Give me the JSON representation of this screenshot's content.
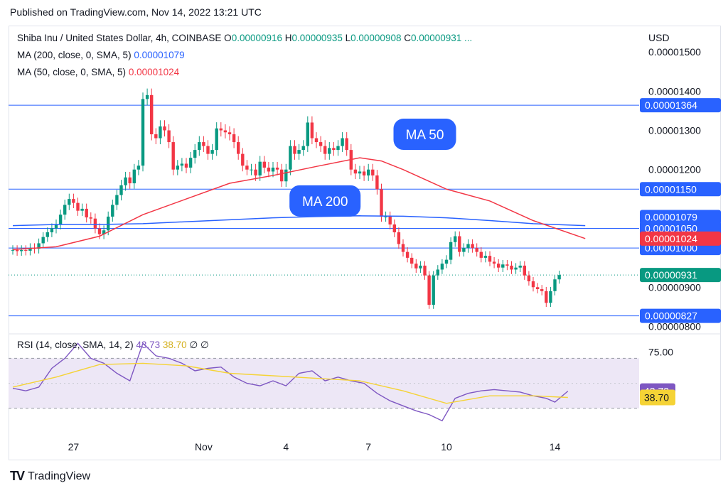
{
  "header": {
    "published": "Published on TradingView.com, Nov 14, 2022 13:21 UTC"
  },
  "legend": {
    "symbol": "Shiba Inu / United States Dollar, 4h, COINBASE",
    "o_label": "O",
    "o_value": "0.00000916",
    "h_label": "H",
    "h_value": "0.00000935",
    "l_label": "L",
    "l_value": "0.00000908",
    "c_label": "C",
    "c_value": "0.00000931 ...",
    "ma200_label": "MA (200, close, 0, SMA, 5)",
    "ma200_value": "0.00001079",
    "ma50_label": "MA (50, close, 0, SMA, 5)",
    "ma50_value": "0.00001024",
    "rsi_label": "RSI (14, close, SMA, 14, 2)",
    "rsi_value": "43.73",
    "rsi_ma_value": "38.70",
    "rsi_extra1": "∅",
    "rsi_extra2": "∅"
  },
  "footer": {
    "logo": "TV",
    "brand": "TradingView"
  },
  "colors": {
    "up": "#089981",
    "down": "#f23645",
    "ma200": "#2962ff",
    "ma50": "#f23645",
    "hline": "#2962ff",
    "rsi": "#7e57c2",
    "rsi_ma": "#f5d336",
    "rsi_band": "#ede7f6",
    "callout": "#2962ff"
  },
  "chart_data": [
    {
      "type": "candlestick",
      "currency_label": "USD",
      "ylim": [
        7.9e-06,
        1.56e-05
      ],
      "y_ticks": [
        {
          "value": 1.5e-05,
          "label": "0.00001500"
        },
        {
          "value": 1.4e-05,
          "label": "0.00001400"
        },
        {
          "value": 1.3e-05,
          "label": "0.00001300"
        },
        {
          "value": 1.2e-05,
          "label": "0.00001200"
        },
        {
          "value": 9e-06,
          "label": "0.00000900"
        },
        {
          "value": 8e-06,
          "label": "0.00000800"
        }
      ],
      "x_ticks": [
        {
          "index": 14,
          "label": "27"
        },
        {
          "index": 44,
          "label": "Nov"
        },
        {
          "index": 63,
          "label": "4"
        },
        {
          "index": 82,
          "label": "7"
        },
        {
          "index": 100,
          "label": "10"
        },
        {
          "index": 125,
          "label": "14"
        }
      ],
      "horizontal_lines": [
        {
          "value": 1.364e-05,
          "label": "0.00001364"
        },
        {
          "value": 1.15e-05,
          "label": "0.00001150"
        },
        {
          "value": 1.05e-05,
          "label": "0.00001050"
        },
        {
          "value": 1e-05,
          "label": "0.00001000"
        },
        {
          "value": 8.27e-06,
          "label": "0.00000827"
        }
      ],
      "price_badges": [
        {
          "value": 1.079e-05,
          "label": "0.00001079",
          "kind": "ma200"
        },
        {
          "value": 1.024e-05,
          "label": "0.00001024",
          "kind": "ma50"
        },
        {
          "value": 9.31e-06,
          "label": "0.00000931",
          "kind": "last"
        }
      ],
      "callouts": [
        {
          "text": "MA 50",
          "index": 95,
          "value": 1.29e-05
        },
        {
          "text": "MA 200",
          "index": 72,
          "value": 1.12e-05
        }
      ],
      "closes": [
        9.95e-06,
        9.92e-06,
        9.95e-06,
        9.93e-06,
        1e-05,
        9.98e-06,
        1.012e-05,
        1.028e-05,
        1.04e-05,
        1.05e-05,
        1.06e-05,
        1.085e-05,
        1.11e-05,
        1.125e-05,
        1.115e-05,
        1.095e-05,
        1.1e-05,
        1.078e-05,
        1.075e-05,
        1.05e-05,
        1.035e-05,
        1.045e-05,
        1.08e-05,
        1.11e-05,
        1.135e-05,
        1.16e-05,
        1.18e-05,
        1.165e-05,
        1.2e-05,
        1.21e-05,
        1.38e-05,
        1.39e-05,
        1.29e-05,
        1.28e-05,
        1.31e-05,
        1.3e-05,
        1.27e-05,
        1.2e-05,
        1.21e-05,
        1.215e-05,
        1.205e-05,
        1.23e-05,
        1.25e-05,
        1.27e-05,
        1.26e-05,
        1.24e-05,
        1.25e-05,
        1.305e-05,
        1.3e-05,
        1.295e-05,
        1.29e-05,
        1.27e-05,
        1.24e-05,
        1.21e-05,
        1.2e-05,
        1.2e-05,
        1.185e-05,
        1.22e-05,
        1.205e-05,
        1.195e-05,
        1.205e-05,
        1.2e-05,
        1.17e-05,
        1.2e-05,
        1.26e-05,
        1.24e-05,
        1.25e-05,
        1.26e-05,
        1.32e-05,
        1.28e-05,
        1.27e-05,
        1.26e-05,
        1.24e-05,
        1.255e-05,
        1.25e-05,
        1.26e-05,
        1.28e-05,
        1.25e-05,
        1.2e-05,
        1.19e-05,
        1.195e-05,
        1.185e-05,
        1.2e-05,
        1.185e-05,
        1.15e-05,
        1.08e-05,
        1.08e-05,
        1.06e-05,
        1.04e-05,
        1.01e-05,
        9.9e-06,
        9.75e-06,
        9.6e-06,
        9.48e-06,
        9.55e-06,
        9.3e-06,
        8.55e-06,
        9.3e-06,
        9.45e-06,
        9.6e-06,
        9.7e-06,
        1.015e-05,
        1.03e-05,
        9.9e-06,
        1e-05,
        1.01e-05,
        1e-05,
        9.9e-06,
        9.75e-06,
        9.8e-06,
        9.65e-06,
        9.6e-06,
        9.5e-06,
        9.58e-06,
        9.55e-06,
        9.45e-06,
        9.5e-06,
        9.55e-06,
        9.3e-06,
        9.15e-06,
        9e-06,
        8.95e-06,
        8.9e-06,
        8.6e-06,
        8.9e-06,
        9.2e-06,
        9.31e-06
      ],
      "ma200": [
        [
          0,
          1.057e-05
        ],
        [
          10,
          1.06e-05
        ],
        [
          20,
          1.06e-05
        ],
        [
          30,
          1.062e-05
        ],
        [
          40,
          1.067e-05
        ],
        [
          50,
          1.072e-05
        ],
        [
          60,
          1.077e-05
        ],
        [
          70,
          1.08e-05
        ],
        [
          80,
          1.082e-05
        ],
        [
          90,
          1.081e-05
        ],
        [
          100,
          1.077e-05
        ],
        [
          110,
          1.07e-05
        ],
        [
          120,
          1.062e-05
        ],
        [
          132,
          1.057e-05
        ]
      ],
      "ma50": [
        [
          0,
          9.96e-06
        ],
        [
          10,
          1.003e-05
        ],
        [
          20,
          1.03e-05
        ],
        [
          30,
          1.085e-05
        ],
        [
          40,
          1.125e-05
        ],
        [
          50,
          1.165e-05
        ],
        [
          60,
          1.185e-05
        ],
        [
          70,
          1.208e-05
        ],
        [
          80,
          1.23e-05
        ],
        [
          85,
          1.222e-05
        ],
        [
          90,
          1.2e-05
        ],
        [
          100,
          1.15e-05
        ],
        [
          110,
          1.12e-05
        ],
        [
          120,
          1.07e-05
        ],
        [
          132,
          1.024e-05
        ]
      ]
    },
    {
      "type": "line",
      "title": "RSI (14, close, SMA, 14, 2)",
      "ylim": [
        10,
        85
      ],
      "band": [
        30,
        70
      ],
      "mid": 50,
      "y_ticks": [
        {
          "value": 75,
          "label": "75.00"
        }
      ],
      "badges": [
        {
          "value": 43.73,
          "label": "43.73",
          "kind": "rsi"
        },
        {
          "value": 38.7,
          "label": "38.70",
          "kind": "rsi_ma"
        }
      ],
      "series": [
        {
          "key": "rsi",
          "points": [
            [
              0,
              46
            ],
            [
              3,
              44
            ],
            [
              6,
              47
            ],
            [
              9,
              62
            ],
            [
              12,
              70
            ],
            [
              15,
              82
            ],
            [
              18,
              70
            ],
            [
              21,
              66
            ],
            [
              24,
              58
            ],
            [
              27,
              52
            ],
            [
              30,
              82
            ],
            [
              33,
              72
            ],
            [
              36,
              70
            ],
            [
              39,
              66
            ],
            [
              42,
              60
            ],
            [
              45,
              62
            ],
            [
              48,
              63
            ],
            [
              51,
              55
            ],
            [
              54,
              50
            ],
            [
              57,
              48
            ],
            [
              60,
              52
            ],
            [
              63,
              48
            ],
            [
              66,
              58
            ],
            [
              69,
              60
            ],
            [
              72,
              52
            ],
            [
              75,
              55
            ],
            [
              78,
              52
            ],
            [
              81,
              50
            ],
            [
              84,
              42
            ],
            [
              87,
              36
            ],
            [
              90,
              32
            ],
            [
              93,
              28
            ],
            [
              96,
              25
            ],
            [
              99,
              20
            ],
            [
              102,
              38
            ],
            [
              105,
              42
            ],
            [
              108,
              44
            ],
            [
              111,
              45
            ],
            [
              114,
              44
            ],
            [
              117,
              43
            ],
            [
              120,
              40
            ],
            [
              123,
              38
            ],
            [
              125,
              35
            ],
            [
              128,
              43.73
            ]
          ]
        },
        {
          "key": "rsi_ma",
          "points": [
            [
              0,
              47
            ],
            [
              10,
              55
            ],
            [
              20,
              65
            ],
            [
              30,
              66
            ],
            [
              40,
              64
            ],
            [
              50,
              58
            ],
            [
              60,
              56
            ],
            [
              70,
              54
            ],
            [
              80,
              52
            ],
            [
              90,
              44
            ],
            [
              100,
              34
            ],
            [
              110,
              40
            ],
            [
              120,
              40
            ],
            [
              128,
              38.7
            ]
          ]
        }
      ]
    }
  ]
}
